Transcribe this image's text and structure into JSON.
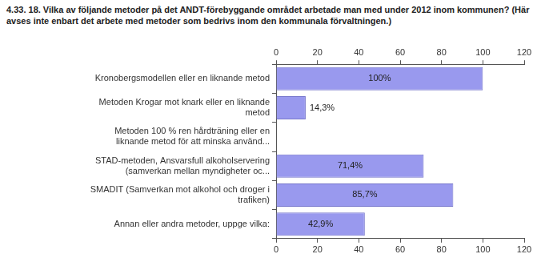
{
  "chart_data": {
    "type": "bar",
    "orientation": "horizontal",
    "title": "4.33. 18. Vilka av följande metoder på det ANDT-förebyggande området arbetade man med under 2012 inom kommunen? (Här avses inte enbart det arbete med metoder som bedrivs inom den kommunala förvaltningen.)",
    "categories": [
      "Kronobergsmodellen eller en liknande metod",
      "Metoden Krogar mot knark eller en liknande metod",
      "Metoden 100 % ren hårdträning eller en liknande metod för att minska använd...",
      "STAD-metoden, Ansvarsfull alkoholservering (samverkan mellan myndigheter oc...",
      "SMADIT (Samverkan mot alkohol och droger i trafiken)",
      "Annan eller andra metoder, uppge vilka:"
    ],
    "values": [
      100,
      14.3,
      0,
      71.4,
      85.7,
      42.9
    ],
    "value_labels": [
      "100%",
      "14,3%",
      null,
      "71,4%",
      "85,7%",
      "42,9%"
    ],
    "data_labels": true,
    "color": "#9999ee",
    "xlim": [
      0,
      120
    ],
    "xticks": [
      0,
      20,
      40,
      60,
      80,
      100,
      120
    ],
    "grid": false
  }
}
